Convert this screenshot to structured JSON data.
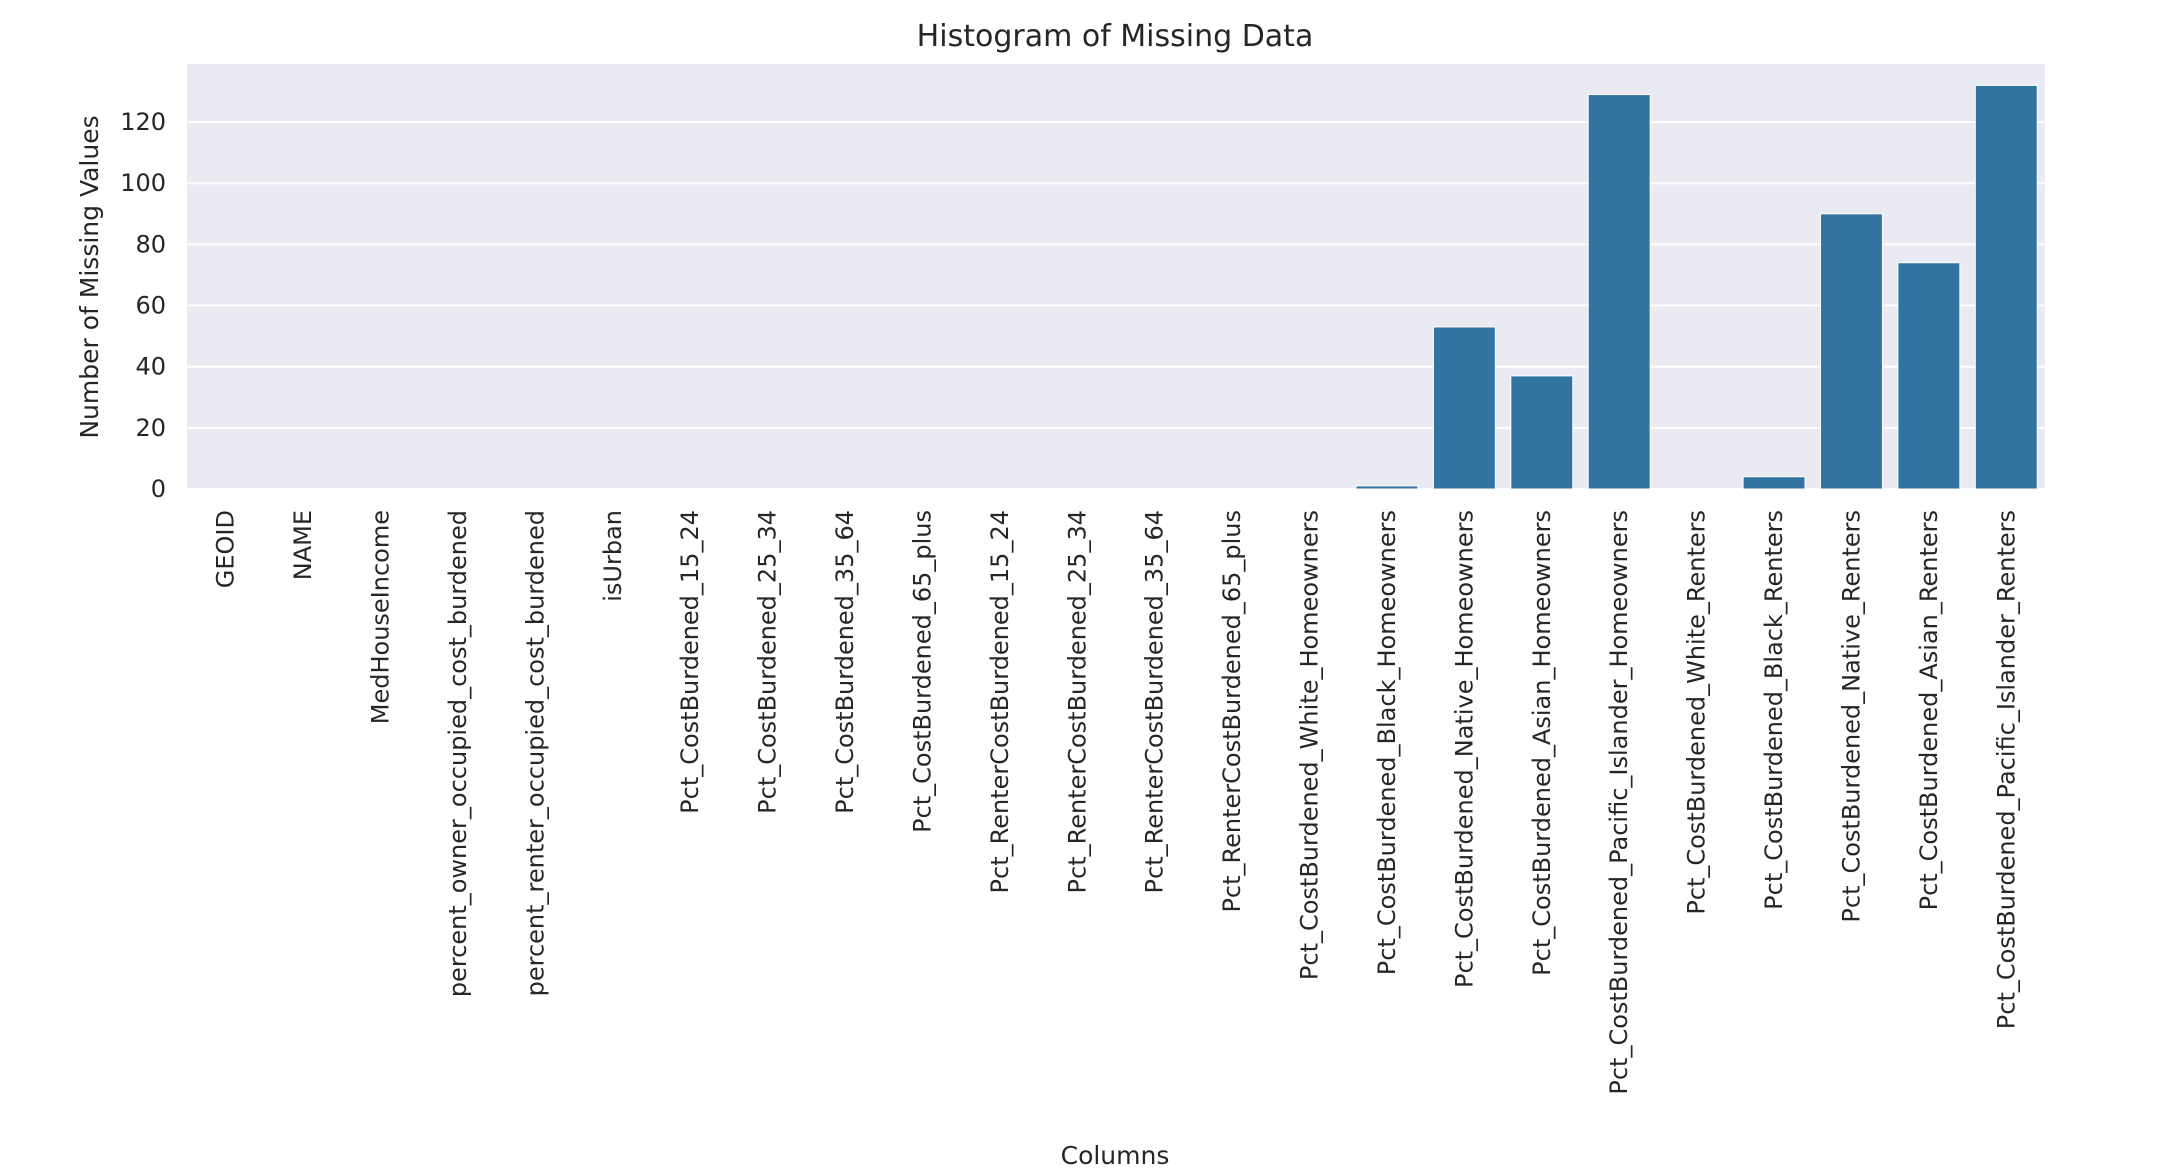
{
  "chart_data": {
    "type": "bar",
    "title": "Histogram of Missing Data",
    "xlabel": "Columns",
    "ylabel": "Number of Missing Values",
    "ylim": [
      0,
      139
    ],
    "yticks": [
      0,
      20,
      40,
      60,
      80,
      100,
      120
    ],
    "grid": true,
    "legend": "none",
    "colors": {
      "bar": "#3274a1",
      "plot_bg": "#eaeaf2"
    },
    "categories": [
      "GEOID",
      "NAME",
      "MedHouseIncome",
      "percent_owner_occupied_cost_burdened",
      "percent_renter_occupied_cost_burdened",
      "isUrban",
      "Pct_CostBurdened_15_24",
      "Pct_CostBurdened_25_34",
      "Pct_CostBurdened_35_64",
      "Pct_CostBurdened_65_plus",
      "Pct_RenterCostBurdened_15_24",
      "Pct_RenterCostBurdened_25_34",
      "Pct_RenterCostBurdened_35_64",
      "Pct_RenterCostBurdened_65_plus",
      "Pct_CostBurdened_White_Homeowners",
      "Pct_CostBurdened_Black_Homeowners",
      "Pct_CostBurdened_Native_Homeowners",
      "Pct_CostBurdened_Asian_Homeowners",
      "Pct_CostBurdened_Pacific_Islander_Homeowners",
      "Pct_CostBurdened_White_Renters",
      "Pct_CostBurdened_Black_Renters",
      "Pct_CostBurdened_Native_Renters",
      "Pct_CostBurdened_Asian_Renters",
      "Pct_CostBurdened_Pacific_Islander_Renters"
    ],
    "values": [
      0,
      0,
      0,
      0,
      0,
      0,
      0,
      0,
      0,
      0,
      0,
      0,
      0,
      0,
      0,
      1,
      53,
      37,
      129,
      0,
      4,
      90,
      74,
      132
    ]
  }
}
